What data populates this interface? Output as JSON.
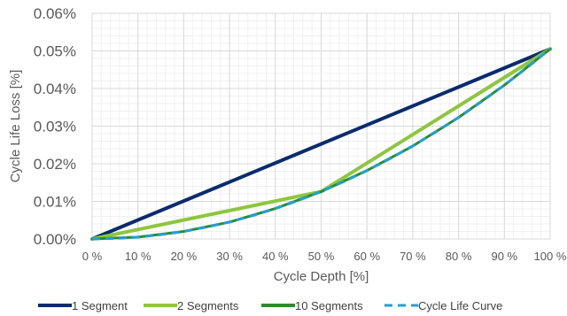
{
  "chart_data": {
    "type": "line",
    "xlabel": "Cycle Depth [%]",
    "ylabel": "Cycle Life Loss [%]",
    "xlim": [
      0,
      100
    ],
    "ylim": [
      0,
      0.06
    ],
    "x_ticks": [
      0,
      10,
      20,
      30,
      40,
      50,
      60,
      70,
      80,
      90,
      100
    ],
    "x_tick_labels": [
      "0 %",
      "10 %",
      "20 %",
      "30 %",
      "40 %",
      "50 %",
      "60 %",
      "70 %",
      "80 %",
      "90 %",
      "100 %"
    ],
    "y_ticks": [
      0,
      0.01,
      0.02,
      0.03,
      0.04,
      0.05,
      0.06
    ],
    "y_tick_labels": [
      "0.00%",
      "0.01%",
      "0.02%",
      "0.03%",
      "0.04%",
      "0.05%",
      "0.06%"
    ],
    "grid": true,
    "legend_position": "bottom",
    "series": [
      {
        "name": "1 Segment",
        "color": "#0a2b6e",
        "dash": "solid",
        "x": [
          0,
          100
        ],
        "y": [
          0,
          0.0505
        ]
      },
      {
        "name": "2 Segments",
        "color": "#8dc63f",
        "dash": "solid",
        "x": [
          0,
          50,
          100
        ],
        "y": [
          0,
          0.0126,
          0.0505
        ]
      },
      {
        "name": "10 Segments",
        "color": "#2e8b2e",
        "dash": "solid",
        "x": [
          0,
          10,
          20,
          30,
          40,
          50,
          60,
          70,
          80,
          90,
          100
        ],
        "y": [
          0,
          0.0005,
          0.002,
          0.0045,
          0.0081,
          0.0126,
          0.0182,
          0.0247,
          0.0323,
          0.0409,
          0.0505
        ]
      },
      {
        "name": "Cycle Life Curve",
        "color": "#1ea1d9",
        "dash": "dashed",
        "x": [
          0,
          5,
          10,
          15,
          20,
          25,
          30,
          35,
          40,
          45,
          50,
          55,
          60,
          65,
          70,
          75,
          80,
          85,
          90,
          95,
          100
        ],
        "y": [
          0,
          0.000126,
          0.000505,
          0.001136,
          0.00202,
          0.003156,
          0.004545,
          0.006186,
          0.00808,
          0.010226,
          0.012625,
          0.015276,
          0.01818,
          0.021336,
          0.024745,
          0.028406,
          0.03232,
          0.036486,
          0.040905,
          0.045576,
          0.0505
        ]
      }
    ]
  }
}
